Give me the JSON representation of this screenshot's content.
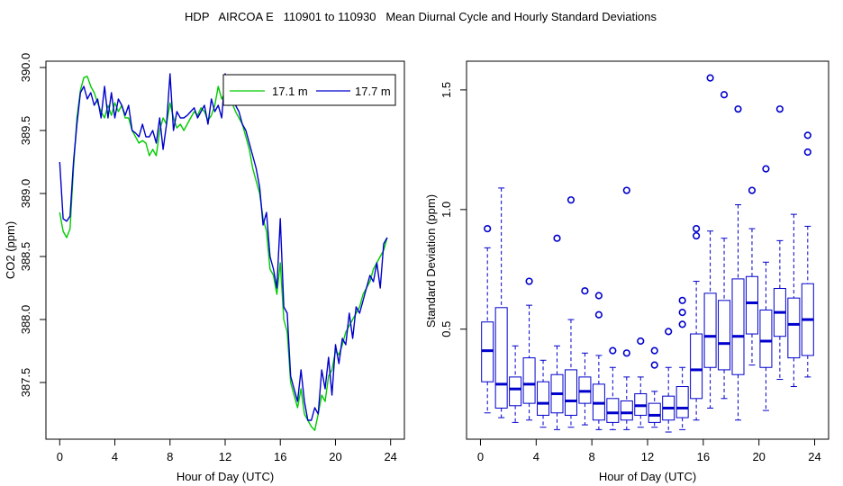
{
  "figure": {
    "title": "HDP   AIRCOA E   110901 to 110930   Mean Diurnal Cycle and Hourly Standard Deviations"
  },
  "chart_data": [
    {
      "type": "line",
      "xlabel": "Hour of Day (UTC)",
      "ylabel": "CO2 (ppm)",
      "xlim": [
        -1,
        25
      ],
      "ylim": [
        387.05,
        390.05
      ],
      "xticks": [
        0,
        4,
        8,
        12,
        16,
        20,
        24
      ],
      "yticks": [
        387.5,
        388.0,
        388.5,
        389.0,
        389.5,
        390.0
      ],
      "ytick_labels": [
        "387.5",
        "388.0",
        "388.5",
        "389.0",
        "389.5",
        "390.0"
      ],
      "legend_position": "top-right",
      "x": [
        0,
        0.25,
        0.5,
        0.75,
        1,
        1.25,
        1.5,
        1.75,
        2,
        2.25,
        2.5,
        2.75,
        3,
        3.25,
        3.5,
        3.75,
        4,
        4.25,
        4.5,
        4.75,
        5,
        5.25,
        5.5,
        5.75,
        6,
        6.25,
        6.5,
        6.75,
        7,
        7.25,
        7.5,
        7.75,
        8,
        8.25,
        8.5,
        8.75,
        9,
        9.25,
        9.5,
        9.75,
        10,
        10.25,
        10.5,
        10.75,
        11,
        11.25,
        11.5,
        11.75,
        12,
        12.25,
        12.5,
        12.75,
        13,
        13.25,
        13.5,
        13.75,
        14,
        14.25,
        14.5,
        14.75,
        15,
        15.25,
        15.5,
        15.75,
        16,
        16.25,
        16.5,
        16.75,
        17,
        17.25,
        17.5,
        17.75,
        18,
        18.25,
        18.5,
        18.75,
        19,
        19.25,
        19.5,
        19.75,
        20,
        20.25,
        20.5,
        20.75,
        21,
        21.25,
        21.5,
        21.75,
        22,
        22.25,
        22.5,
        22.75,
        23,
        23.25,
        23.5,
        23.75
      ],
      "series": [
        {
          "name": "17.1 m",
          "color": "#00cc00",
          "values": [
            388.85,
            388.7,
            388.65,
            388.72,
            389.2,
            389.6,
            389.82,
            389.92,
            389.93,
            389.85,
            389.8,
            389.72,
            389.65,
            389.6,
            389.7,
            389.62,
            389.72,
            389.65,
            389.7,
            389.6,
            389.6,
            389.5,
            389.45,
            389.4,
            389.42,
            389.4,
            389.3,
            389.35,
            389.3,
            389.5,
            389.6,
            389.55,
            389.72,
            389.6,
            389.52,
            389.55,
            389.5,
            389.55,
            389.6,
            389.65,
            389.62,
            389.68,
            389.65,
            389.58,
            389.62,
            389.7,
            389.85,
            389.75,
            389.8,
            389.7,
            389.72,
            389.65,
            389.6,
            389.55,
            389.45,
            389.35,
            389.2,
            389.1,
            389.0,
            388.8,
            388.7,
            388.4,
            388.35,
            388.2,
            388.45,
            388.0,
            387.9,
            387.5,
            387.4,
            387.3,
            387.45,
            387.25,
            387.2,
            387.15,
            387.12,
            387.25,
            387.4,
            387.35,
            387.55,
            387.6,
            387.75,
            387.72,
            387.8,
            387.9,
            387.95,
            388.0,
            388.05,
            388.1,
            388.2,
            388.25,
            388.3,
            388.4,
            388.45,
            388.5,
            388.55,
            388.65
          ]
        },
        {
          "name": "17.7 m",
          "color": "#0000cc",
          "values": [
            389.25,
            388.8,
            388.78,
            388.82,
            389.25,
            389.55,
            389.8,
            389.85,
            389.75,
            389.8,
            389.7,
            389.75,
            389.6,
            389.85,
            389.6,
            389.8,
            389.6,
            389.75,
            389.7,
            389.62,
            389.7,
            389.5,
            389.48,
            389.45,
            389.55,
            389.45,
            389.45,
            389.5,
            389.4,
            389.6,
            389.35,
            389.55,
            389.95,
            389.5,
            389.65,
            389.6,
            389.6,
            389.62,
            389.65,
            389.68,
            389.6,
            389.65,
            389.7,
            389.55,
            389.75,
            389.65,
            389.7,
            389.6,
            389.95,
            389.7,
            389.75,
            389.7,
            389.65,
            389.55,
            389.5,
            389.4,
            389.3,
            389.2,
            389.05,
            388.75,
            388.85,
            388.5,
            388.4,
            388.25,
            388.8,
            388.1,
            388.05,
            387.55,
            387.45,
            387.35,
            387.6,
            387.35,
            387.2,
            387.2,
            387.3,
            387.25,
            387.6,
            387.45,
            387.7,
            387.4,
            387.8,
            387.65,
            387.85,
            387.8,
            388.05,
            387.85,
            388.1,
            388.05,
            388.15,
            388.25,
            388.35,
            388.3,
            388.45,
            388.25,
            388.6,
            388.65
          ]
        }
      ]
    },
    {
      "type": "boxplot",
      "xlabel": "Hour of Day (UTC)",
      "ylabel": "Standard Deviation (ppm)",
      "xlim": [
        -1,
        25
      ],
      "ylim": [
        0.04,
        1.62
      ],
      "xticks": [
        0,
        4,
        8,
        12,
        16,
        20,
        24
      ],
      "yticks": [
        0.5,
        1.0,
        1.5
      ],
      "ytick_labels": [
        "0.5",
        "1.0",
        "1.5"
      ],
      "color": "#0000cc",
      "boxes": [
        {
          "hour": 0.5,
          "wlo": 0.15,
          "q1": 0.28,
          "med": 0.41,
          "q3": 0.53,
          "whi": 0.84,
          "outliers": [
            0.92
          ]
        },
        {
          "hour": 1.5,
          "wlo": 0.13,
          "q1": 0.17,
          "med": 0.27,
          "q3": 0.59,
          "whi": 1.09,
          "outliers": []
        },
        {
          "hour": 2.5,
          "wlo": 0.11,
          "q1": 0.18,
          "med": 0.25,
          "q3": 0.3,
          "whi": 0.43,
          "outliers": []
        },
        {
          "hour": 3.5,
          "wlo": 0.12,
          "q1": 0.19,
          "med": 0.27,
          "q3": 0.38,
          "whi": 0.6,
          "outliers": [
            0.7
          ]
        },
        {
          "hour": 4.5,
          "wlo": 0.09,
          "q1": 0.14,
          "med": 0.19,
          "q3": 0.28,
          "whi": 0.37,
          "outliers": []
        },
        {
          "hour": 5.5,
          "wlo": 0.08,
          "q1": 0.15,
          "med": 0.23,
          "q3": 0.31,
          "whi": 0.43,
          "outliers": [
            0.88
          ]
        },
        {
          "hour": 6.5,
          "wlo": 0.09,
          "q1": 0.14,
          "med": 0.2,
          "q3": 0.33,
          "whi": 0.54,
          "outliers": [
            1.04
          ]
        },
        {
          "hour": 7.5,
          "wlo": 0.1,
          "q1": 0.19,
          "med": 0.24,
          "q3": 0.3,
          "whi": 0.4,
          "outliers": [
            0.66
          ]
        },
        {
          "hour": 8.5,
          "wlo": 0.08,
          "q1": 0.12,
          "med": 0.19,
          "q3": 0.27,
          "whi": 0.39,
          "outliers": [
            0.56,
            0.64
          ]
        },
        {
          "hour": 9.5,
          "wlo": 0.08,
          "q1": 0.11,
          "med": 0.15,
          "q3": 0.21,
          "whi": 0.34,
          "outliers": [
            0.41
          ]
        },
        {
          "hour": 10.5,
          "wlo": 0.08,
          "q1": 0.12,
          "med": 0.15,
          "q3": 0.2,
          "whi": 0.3,
          "outliers": [
            0.4,
            1.08
          ]
        },
        {
          "hour": 11.5,
          "wlo": 0.09,
          "q1": 0.14,
          "med": 0.18,
          "q3": 0.23,
          "whi": 0.3,
          "outliers": [
            0.45
          ]
        },
        {
          "hour": 12.5,
          "wlo": 0.09,
          "q1": 0.11,
          "med": 0.14,
          "q3": 0.19,
          "whi": 0.24,
          "outliers": [
            0.35,
            0.41
          ]
        },
        {
          "hour": 13.5,
          "wlo": 0.07,
          "q1": 0.12,
          "med": 0.17,
          "q3": 0.22,
          "whi": 0.34,
          "outliers": [
            0.49
          ]
        },
        {
          "hour": 14.5,
          "wlo": 0.08,
          "q1": 0.13,
          "med": 0.17,
          "q3": 0.26,
          "whi": 0.34,
          "outliers": [
            0.52,
            0.57,
            0.62
          ]
        },
        {
          "hour": 15.5,
          "wlo": 0.12,
          "q1": 0.21,
          "med": 0.33,
          "q3": 0.48,
          "whi": 0.7,
          "outliers": [
            0.89,
            0.92
          ]
        },
        {
          "hour": 16.5,
          "wlo": 0.17,
          "q1": 0.34,
          "med": 0.47,
          "q3": 0.65,
          "whi": 0.91,
          "outliers": [
            1.55
          ]
        },
        {
          "hour": 17.5,
          "wlo": 0.21,
          "q1": 0.33,
          "med": 0.44,
          "q3": 0.62,
          "whi": 0.88,
          "outliers": [
            1.48
          ]
        },
        {
          "hour": 18.5,
          "wlo": 0.12,
          "q1": 0.31,
          "med": 0.47,
          "q3": 0.71,
          "whi": 1.02,
          "outliers": [
            1.42
          ]
        },
        {
          "hour": 19.5,
          "wlo": 0.35,
          "q1": 0.48,
          "med": 0.61,
          "q3": 0.72,
          "whi": 0.92,
          "outliers": [
            1.08
          ]
        },
        {
          "hour": 20.5,
          "wlo": 0.16,
          "q1": 0.34,
          "med": 0.45,
          "q3": 0.58,
          "whi": 0.78,
          "outliers": [
            1.17
          ]
        },
        {
          "hour": 21.5,
          "wlo": 0.29,
          "q1": 0.47,
          "med": 0.57,
          "q3": 0.67,
          "whi": 0.87,
          "outliers": [
            1.42
          ]
        },
        {
          "hour": 22.5,
          "wlo": 0.26,
          "q1": 0.38,
          "med": 0.52,
          "q3": 0.63,
          "whi": 0.98,
          "outliers": []
        },
        {
          "hour": 23.5,
          "wlo": 0.3,
          "q1": 0.39,
          "med": 0.54,
          "q3": 0.69,
          "whi": 0.93,
          "outliers": [
            1.24,
            1.31
          ]
        }
      ]
    }
  ]
}
